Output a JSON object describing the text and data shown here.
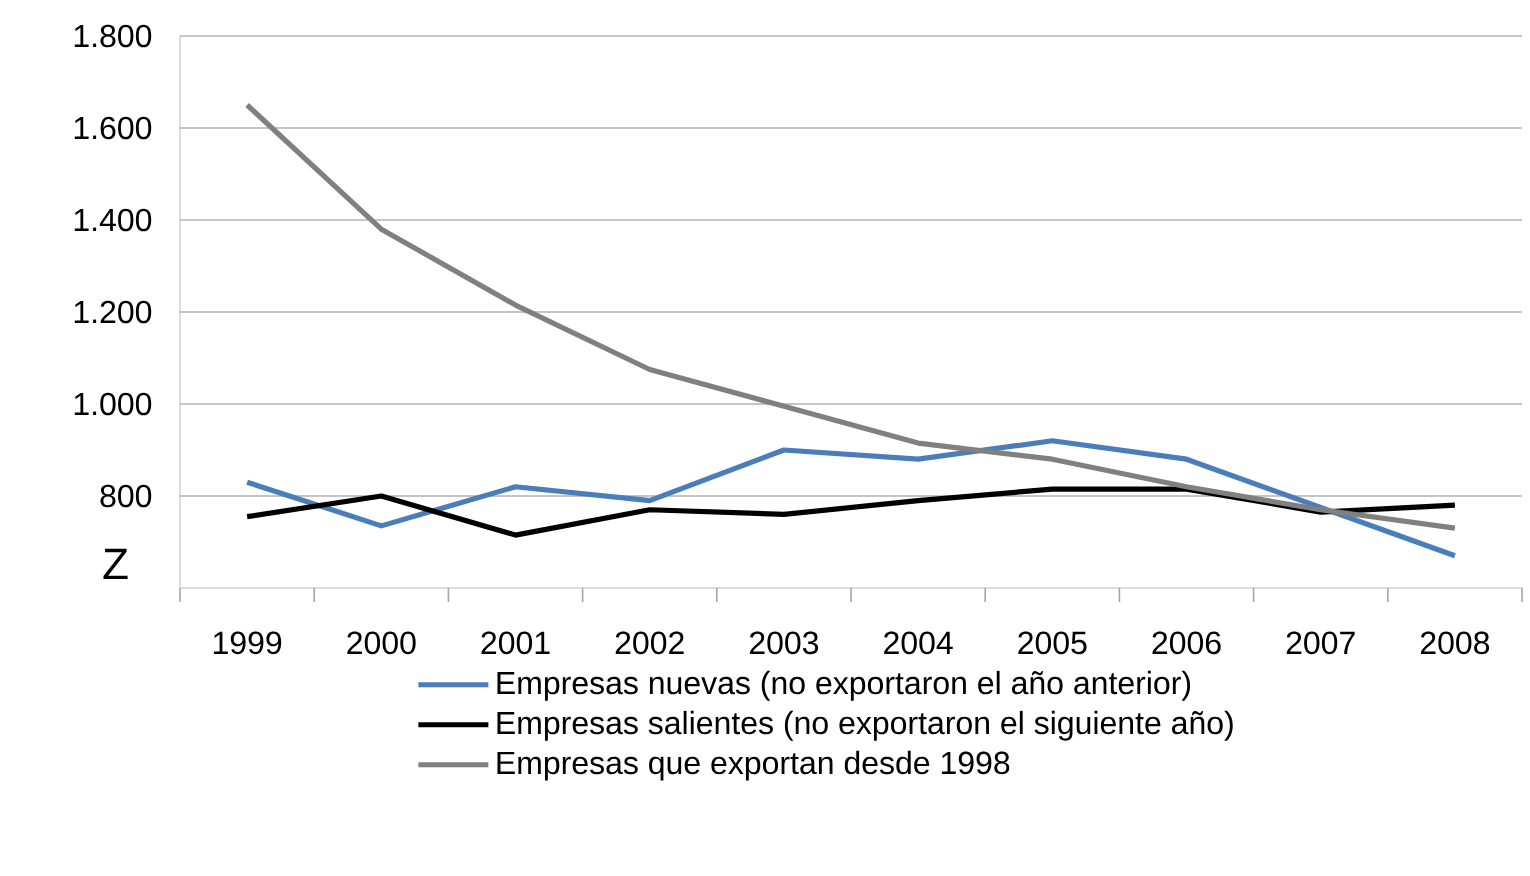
{
  "chart_data": {
    "type": "line",
    "categories": [
      "1999",
      "2000",
      "2001",
      "2002",
      "2003",
      "2004",
      "2005",
      "2006",
      "2007",
      "2008"
    ],
    "series": [
      {
        "name": "Empresas nuevas (no exportaron el año anterior)",
        "color": "#4a7ebb",
        "values": [
          830,
          735,
          820,
          790,
          900,
          880,
          920,
          880,
          775,
          670
        ]
      },
      {
        "name": "Empresas salientes (no exportaron el siguiente año)",
        "color": "#000000",
        "values": [
          755,
          800,
          715,
          770,
          760,
          790,
          815,
          815,
          765,
          780
        ]
      },
      {
        "name": "Empresas que exportan desde 1998",
        "color": "#808080",
        "values": [
          1650,
          1380,
          1215,
          1075,
          995,
          915,
          880,
          820,
          770,
          730
        ]
      }
    ],
    "ylim": [
      600,
      1800
    ],
    "yticks": [
      800,
      {
        "value": 1000,
        "label": "1.000"
      },
      {
        "value": 1200,
        "label": "1.200"
      },
      {
        "value": 1400,
        "label": "1.400"
      },
      {
        "value": 1600,
        "label": "1.600"
      },
      {
        "value": 1800,
        "label": "1.800"
      }
    ],
    "annotations": [
      "Z"
    ],
    "grid": "y",
    "legend": "bottom",
    "marker": "none",
    "line_style": "solid"
  }
}
